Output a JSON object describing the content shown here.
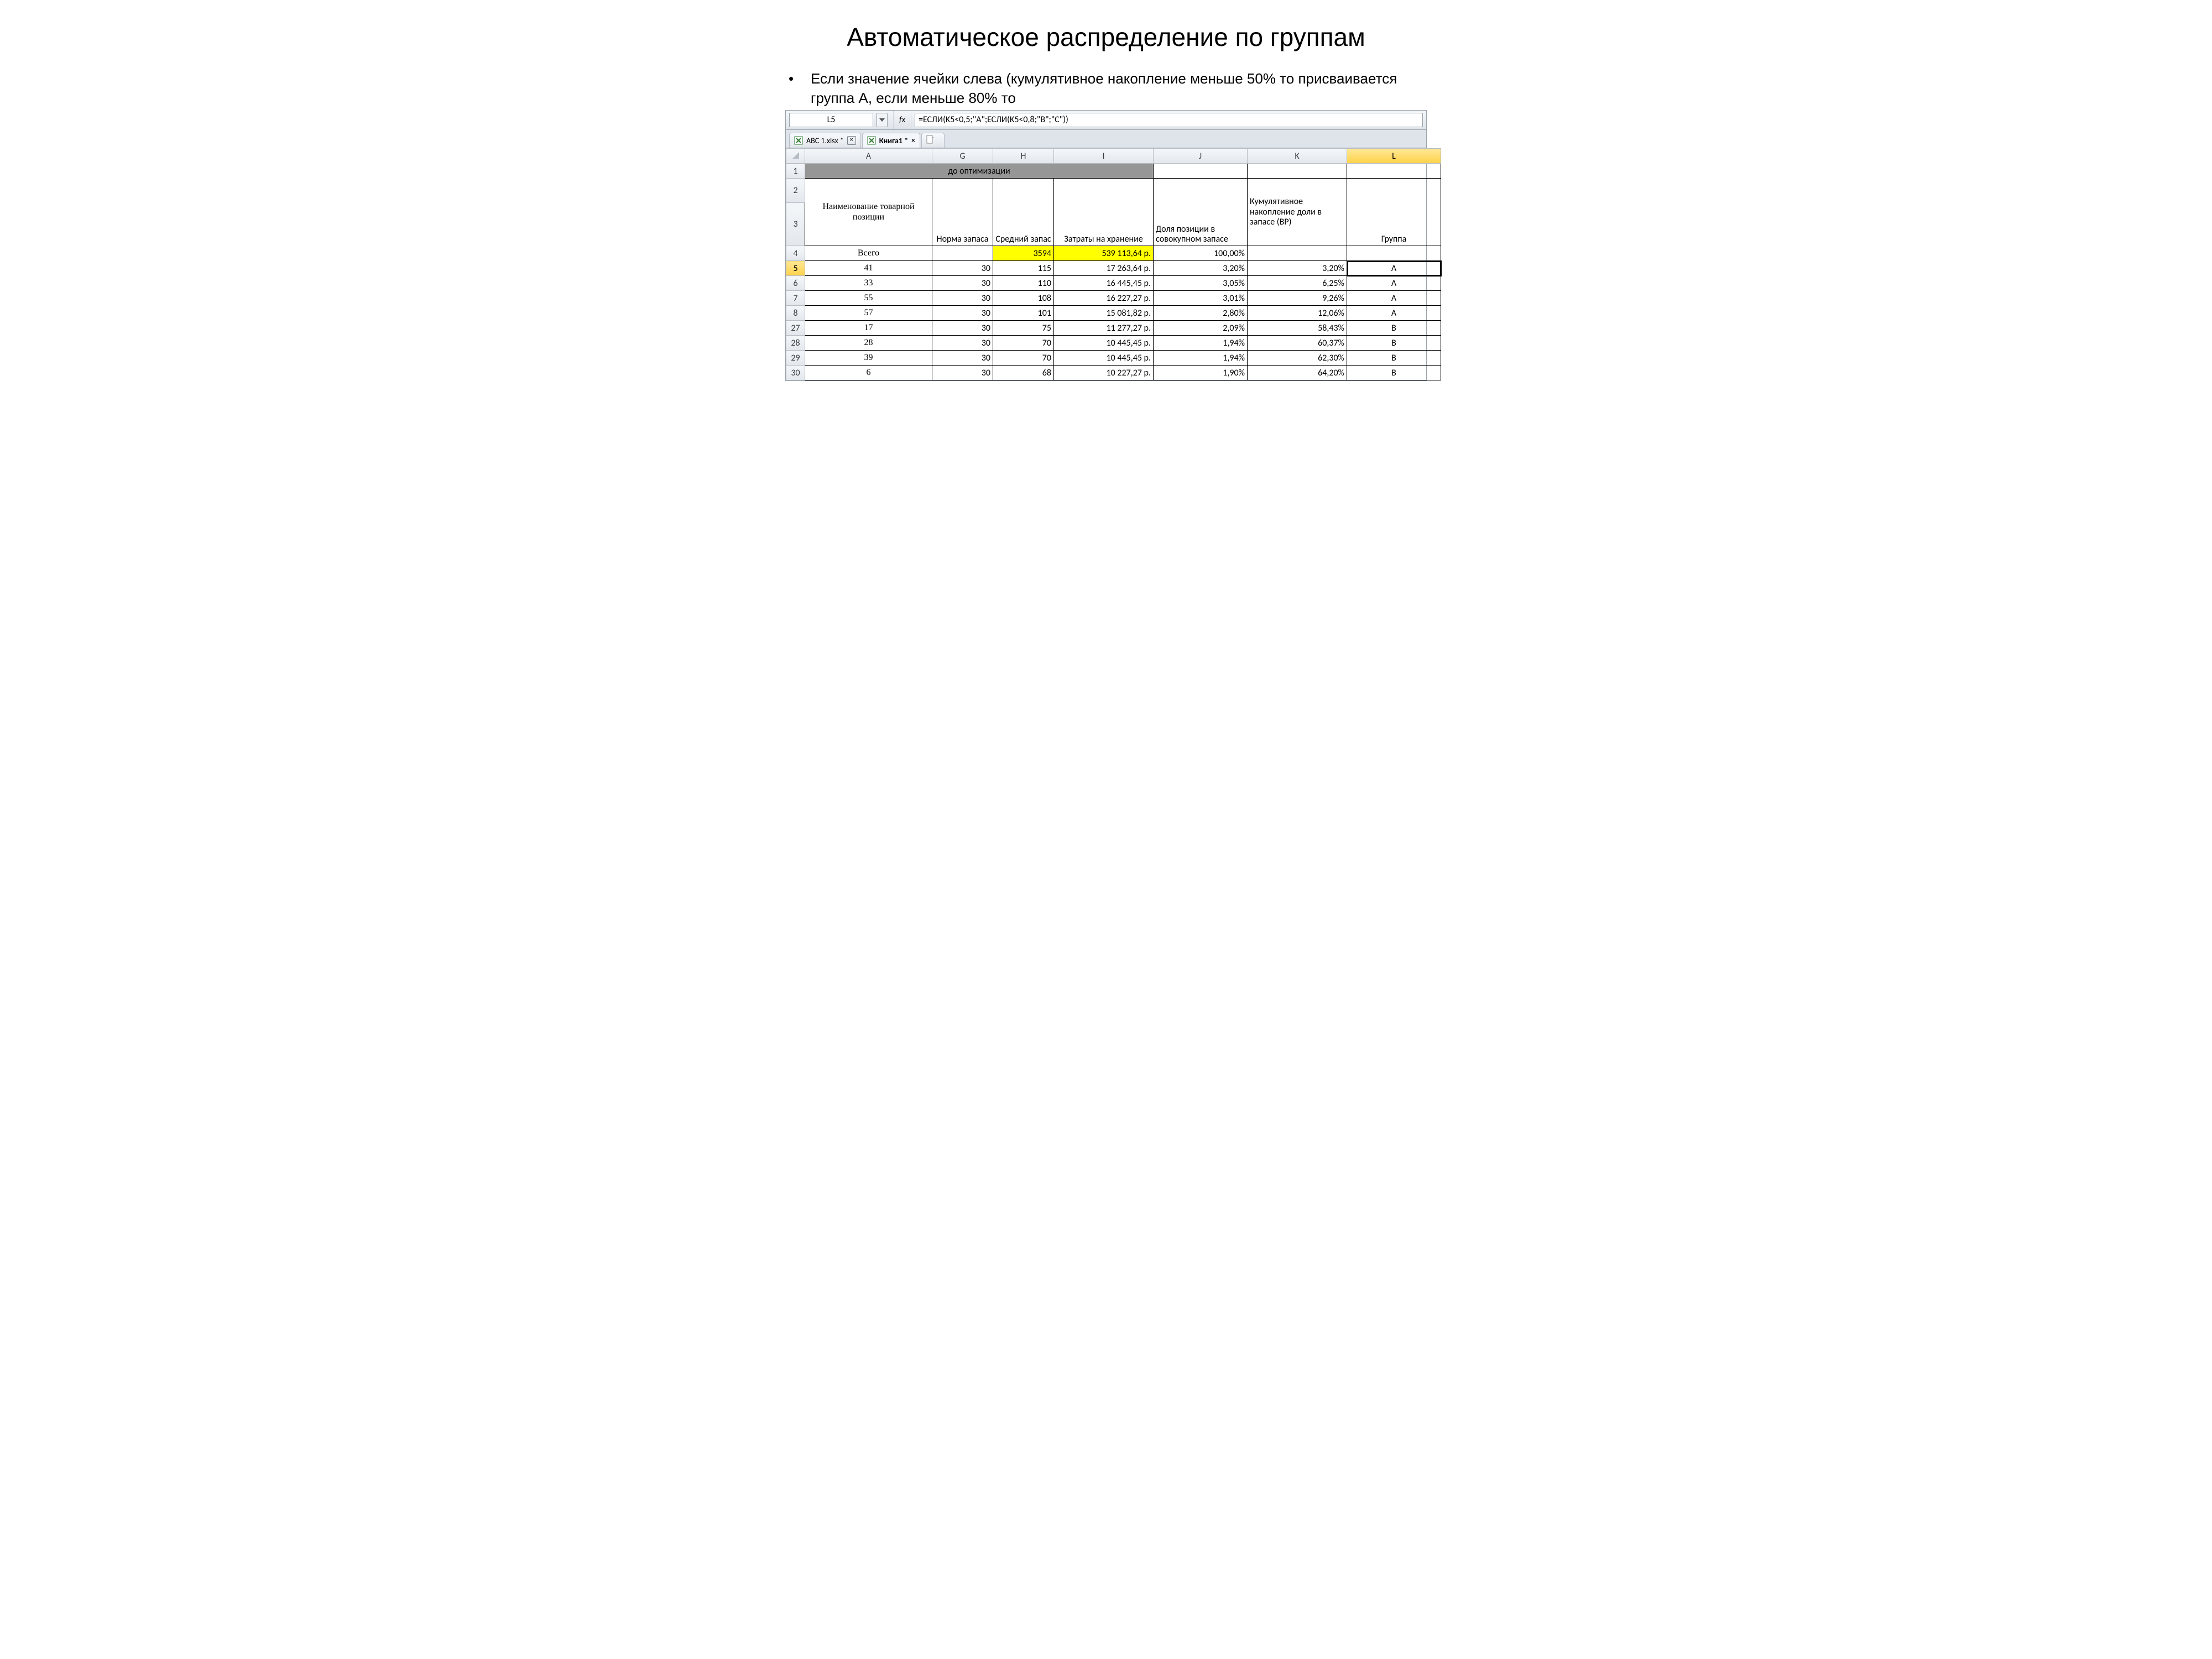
{
  "slide": {
    "title": "Автоматическое распределение по группам",
    "bullet": "Если значение ячейки слева (кумулятивное накопление меньше 50% то присваивается группа А, если меньше 80% то"
  },
  "excel": {
    "name_box": "L5",
    "fx_label": "fx",
    "formula": "=ЕСЛИ(K5<0,5;\"A\";ЕСЛИ(K5<0,8;\"B\";\"C\"))",
    "tabs": [
      {
        "label": "ABC 1.xlsx *",
        "active": false
      },
      {
        "label": "Книга1 *",
        "active": true
      }
    ],
    "columns": [
      "A",
      "G",
      "H",
      "I",
      "J",
      "K",
      "L"
    ],
    "selected_column": "L",
    "selected_row": "5",
    "row1_merged_label": "до оптимизации",
    "headers": {
      "A": "Наименование товарной позиции",
      "G": "Норма запаса",
      "H": "Средний запас",
      "I": "Затраты на хранение",
      "J": "Доля позиции в совокупном запасе",
      "K": "Кумулятивное накопление доли в запасе (ВР)",
      "L": "Группа"
    },
    "total_label": "Всего",
    "rows": [
      {
        "n": "4",
        "A": "Всего",
        "G": "",
        "H": "3594",
        "I": "539 113,64 р.",
        "J": "100,00%",
        "K": "",
        "L": ""
      },
      {
        "n": "5",
        "A": "41",
        "G": "30",
        "H": "115",
        "I": "17 263,64 р.",
        "J": "3,20%",
        "K": "3,20%",
        "L": "A"
      },
      {
        "n": "6",
        "A": "33",
        "G": "30",
        "H": "110",
        "I": "16 445,45 р.",
        "J": "3,05%",
        "K": "6,25%",
        "L": "A"
      },
      {
        "n": "7",
        "A": "55",
        "G": "30",
        "H": "108",
        "I": "16 227,27 р.",
        "J": "3,01%",
        "K": "9,26%",
        "L": "A"
      },
      {
        "n": "8",
        "A": "57",
        "G": "30",
        "H": "101",
        "I": "15 081,82 р.",
        "J": "2,80%",
        "K": "12,06%",
        "L": "A"
      },
      {
        "n": "27",
        "A": "17",
        "G": "30",
        "H": "75",
        "I": "11 277,27 р.",
        "J": "2,09%",
        "K": "58,43%",
        "L": "B"
      },
      {
        "n": "28",
        "A": "28",
        "G": "30",
        "H": "70",
        "I": "10 445,45 р.",
        "J": "1,94%",
        "K": "60,37%",
        "L": "B"
      },
      {
        "n": "29",
        "A": "39",
        "G": "30",
        "H": "70",
        "I": "10 445,45 р.",
        "J": "1,94%",
        "K": "62,30%",
        "L": "B"
      },
      {
        "n": "30",
        "A": "6",
        "G": "30",
        "H": "68",
        "I": "10 227,27 р.",
        "J": "1,90%",
        "K": "64,20%",
        "L": "B"
      }
    ]
  },
  "colors": {
    "header_gray": "#969696",
    "highlight_yellow": "#ffff00",
    "col_select": "#ffd24a",
    "grid_border": "#c9cfd6",
    "chrome_border": "#9aa3ab"
  }
}
